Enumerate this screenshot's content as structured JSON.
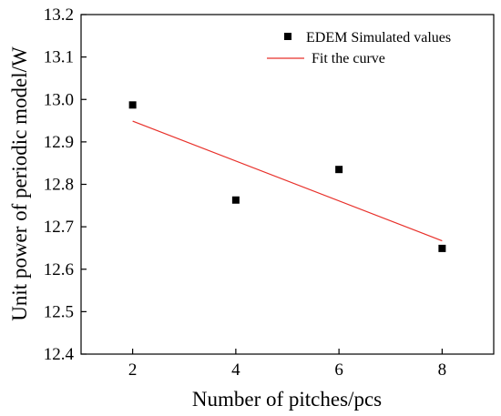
{
  "chart_data": {
    "type": "scatter",
    "title": "",
    "xlabel": "Number of pitches/pcs",
    "ylabel": "Unit power of periodic model/W",
    "xlim": [
      1,
      9
    ],
    "ylim": [
      12.4,
      13.2
    ],
    "x_ticks": [
      "2",
      "4",
      "6",
      "8"
    ],
    "y_ticks": [
      "12.4",
      "12.5",
      "12.6",
      "12.7",
      "12.8",
      "12.9",
      "13.0",
      "13.1",
      "13.2"
    ],
    "grid": false,
    "legend_position": "top-right",
    "series": [
      {
        "name": "EDEM Simulated values",
        "kind": "scatter",
        "marker": "square",
        "color": "#000000",
        "x": [
          2,
          4,
          6,
          8
        ],
        "y": [
          12.987,
          12.763,
          12.835,
          12.649
        ]
      },
      {
        "name": "Fit the curve",
        "kind": "line",
        "color": "#e8302a",
        "x": [
          2,
          8
        ],
        "y": [
          12.949,
          12.667
        ]
      }
    ]
  }
}
